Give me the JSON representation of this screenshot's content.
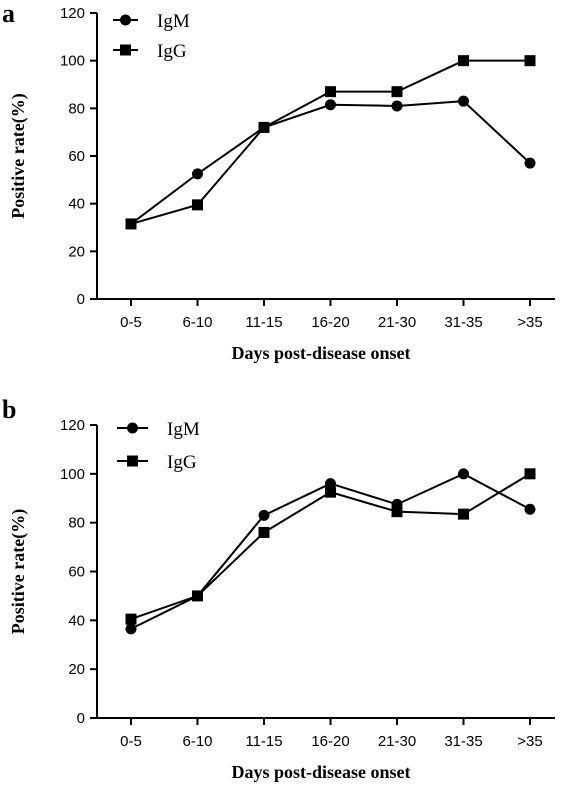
{
  "chart_data": [
    {
      "type": "line",
      "panel_label": "a",
      "categories": [
        "0-5",
        "6-10",
        "11-15",
        "16-20",
        "21-30",
        "31-35",
        ">35"
      ],
      "series": [
        {
          "name": "IgM",
          "marker": "circle",
          "values": [
            31.5,
            52.5,
            72,
            81.5,
            81,
            83,
            57
          ]
        },
        {
          "name": "IgG",
          "marker": "square",
          "values": [
            31.5,
            39.5,
            72,
            87,
            87,
            100,
            100
          ]
        }
      ],
      "xlabel": "Days post-disease onset",
      "ylabel": "Positive rate(%)",
      "ylim": [
        0,
        120
      ],
      "yticks": [
        "0",
        "20",
        "40",
        "60",
        "80",
        "100",
        "120"
      ],
      "legend_position": "top-left",
      "grid": false
    },
    {
      "type": "line",
      "panel_label": "b",
      "categories": [
        "0-5",
        "6-10",
        "11-15",
        "16-20",
        "21-30",
        "31-35",
        ">35"
      ],
      "series": [
        {
          "name": "IgM",
          "marker": "circle",
          "values": [
            36.5,
            50,
            83,
            96,
            87.5,
            100,
            85.5
          ]
        },
        {
          "name": "IgG",
          "marker": "square",
          "values": [
            40.5,
            50,
            76,
            92.5,
            84.5,
            83.5,
            100
          ]
        }
      ],
      "xlabel": "Days post-disease onset",
      "ylabel": "Positive rate(%)",
      "ylim": [
        0,
        120
      ],
      "yticks": [
        "0",
        "20",
        "40",
        "60",
        "80",
        "100",
        "120"
      ],
      "legend_position": "top-left",
      "grid": false
    }
  ]
}
